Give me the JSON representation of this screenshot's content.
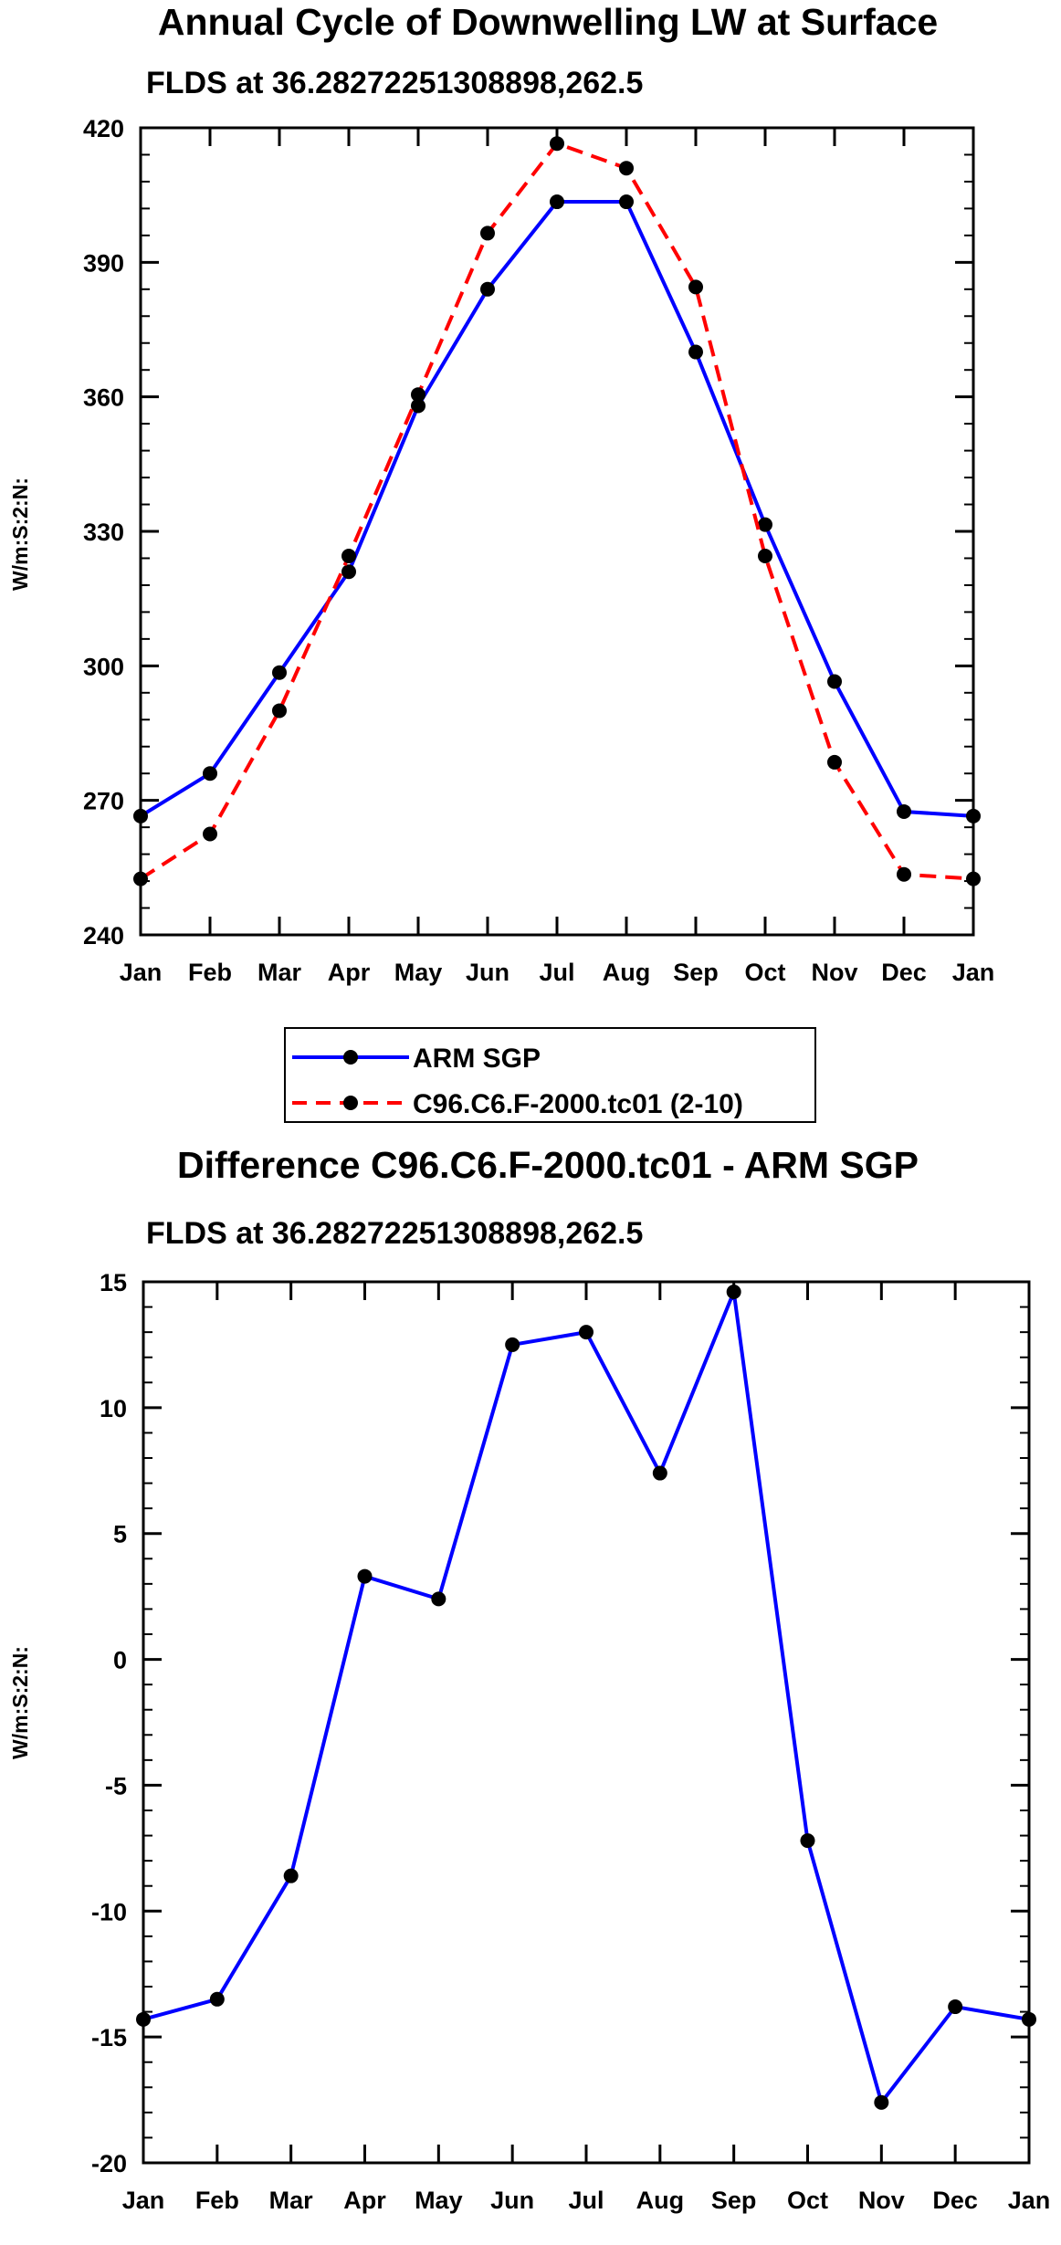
{
  "chart_data": [
    {
      "type": "line",
      "title": "Annual Cycle of Downwelling LW at Surface",
      "subtitle": "FLDS at 36.28272251308898,262.5",
      "xlabel": "",
      "ylabel": "W/m:S:2:N:",
      "categories": [
        "Jan",
        "Feb",
        "Mar",
        "Apr",
        "May",
        "Jun",
        "Jul",
        "Aug",
        "Sep",
        "Oct",
        "Nov",
        "Dec",
        "Jan"
      ],
      "ylim": [
        240,
        420
      ],
      "yticks": [
        240,
        270,
        300,
        330,
        360,
        390,
        420
      ],
      "series": [
        {
          "name": "ARM SGP",
          "color": "#0000ff",
          "dash": "solid",
          "x": [
            0.5,
            1.5,
            2.5,
            3.5,
            4.5,
            5.5,
            6.5,
            7.5,
            8.5,
            9.5,
            10.5,
            11.5,
            12.5
          ],
          "values": [
            266.5,
            276.0,
            298.5,
            321.0,
            358.0,
            384.0,
            403.5,
            403.5,
            370.0,
            331.5,
            296.5,
            267.5,
            266.5
          ]
        },
        {
          "name": "C96.C6.F-2000.tc01 (2-10)",
          "color": "#ff0000",
          "dash": "dashed",
          "x": [
            0.5,
            1.5,
            2.5,
            3.5,
            4.5,
            5.5,
            6.5,
            7.5,
            8.5,
            9.5,
            10.5,
            11.5,
            12.5
          ],
          "values": [
            252.5,
            262.5,
            290.0,
            324.5,
            360.5,
            396.5,
            416.5,
            411.0,
            384.5,
            324.5,
            278.5,
            253.5,
            252.5
          ]
        }
      ]
    },
    {
      "type": "line",
      "title": "Difference C96.C6.F-2000.tc01 - ARM SGP",
      "subtitle": "FLDS at 36.28272251308898,262.5",
      "xlabel": "",
      "ylabel": "W/m:S:2:N:",
      "categories": [
        "Jan",
        "Feb",
        "Mar",
        "Apr",
        "May",
        "Jun",
        "Jul",
        "Aug",
        "Sep",
        "Oct",
        "Nov",
        "Dec",
        "Jan"
      ],
      "ylim": [
        -20,
        15
      ],
      "yticks": [
        -20,
        -15,
        -10,
        -5,
        0,
        5,
        10,
        15
      ],
      "series": [
        {
          "name": "Difference",
          "color": "#0000ff",
          "dash": "solid",
          "x": [
            0.5,
            1.5,
            2.5,
            3.5,
            4.5,
            5.5,
            6.5,
            7.5,
            8.5,
            9.5,
            10.5,
            11.5,
            12.5
          ],
          "values": [
            -14.3,
            -13.5,
            -8.6,
            3.3,
            2.4,
            12.5,
            13.0,
            7.4,
            14.6,
            -7.2,
            -17.6,
            -13.8,
            -14.3
          ]
        }
      ]
    }
  ],
  "legend": {
    "items": [
      {
        "label": "ARM SGP"
      },
      {
        "label": "C96.C6.F-2000.tc01 (2-10)"
      }
    ]
  }
}
